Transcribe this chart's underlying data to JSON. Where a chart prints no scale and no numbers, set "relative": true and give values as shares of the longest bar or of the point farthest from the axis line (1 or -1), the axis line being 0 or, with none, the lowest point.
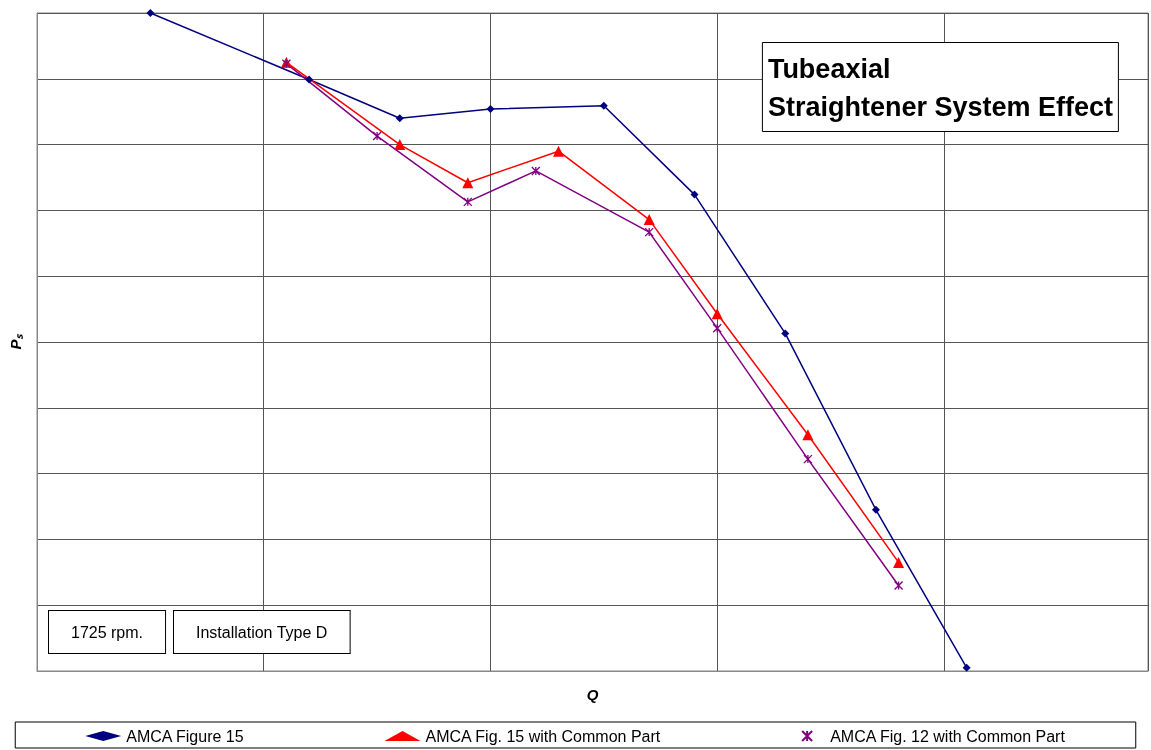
{
  "chart_data": {
    "type": "line",
    "title": "Tubeaxial\nStraightener System Effect",
    "xlabel": "Q",
    "ylabel": "Pₛ",
    "relative": true,
    "categories": [
      null,
      null,
      null,
      null,
      null,
      null,
      null,
      null,
      null,
      null,
      null,
      null,
      null,
      null,
      null,
      null,
      null,
      null,
      null,
      null,
      null,
      null,
      null,
      null,
      null,
      null,
      null,
      null,
      null,
      null,
      null,
      null,
      null,
      null,
      null,
      null,
      null,
      null,
      null,
      null,
      null,
      null,
      null,
      null,
      null,
      null,
      null,
      null,
      null,
      null
    ],
    "grid": true,
    "legend": "bottom",
    "line_style": "solid",
    "annotations": [
      "1725 rpm.",
      "Installation Type D"
    ],
    "series": [
      {
        "name": "AMCA Figure 15",
        "color": "#000080",
        "marker": "diamond",
        "values": [
          null,
          null,
          null,
          null,
          null,
          1,
          null,
          null,
          null,
          null,
          null,
          null,
          0.899,
          null,
          null,
          null,
          0.84,
          null,
          null,
          null,
          0.854,
          null,
          null,
          null,
          null,
          0.859,
          null,
          null,
          null,
          0.724,
          null,
          null,
          null,
          0.513,
          null,
          null,
          null,
          0.245,
          null,
          null,
          null,
          0.005,
          null,
          null,
          null,
          null,
          null,
          null,
          null,
          null
        ]
      },
      {
        "name": "AMCA Fig. 15 with Common Part",
        "color": "#ff0000",
        "marker": "triangle",
        "values": [
          null,
          null,
          null,
          null,
          null,
          null,
          null,
          null,
          null,
          null,
          null,
          0.925,
          null,
          null,
          null,
          null,
          0.8,
          null,
          null,
          0.742,
          null,
          null,
          null,
          0.79,
          null,
          null,
          null,
          0.686,
          null,
          null,
          0.543,
          null,
          null,
          null,
          0.359,
          null,
          null,
          null,
          0.165,
          null,
          null,
          null,
          null,
          null,
          null,
          null,
          null,
          null,
          null,
          null
        ]
      },
      {
        "name": "AMCA Fig. 12 with Common Part",
        "color": "#800080",
        "marker": "cross",
        "values": [
          null,
          null,
          null,
          null,
          null,
          null,
          null,
          null,
          null,
          null,
          null,
          0.923,
          null,
          null,
          null,
          0.813,
          null,
          null,
          null,
          0.713,
          null,
          null,
          0.76,
          null,
          null,
          null,
          null,
          0.667,
          null,
          null,
          0.521,
          null,
          null,
          null,
          0.322,
          null,
          null,
          null,
          0.13,
          null,
          null,
          null,
          null,
          null,
          null,
          null,
          null,
          null,
          null,
          null
        ]
      }
    ]
  }
}
